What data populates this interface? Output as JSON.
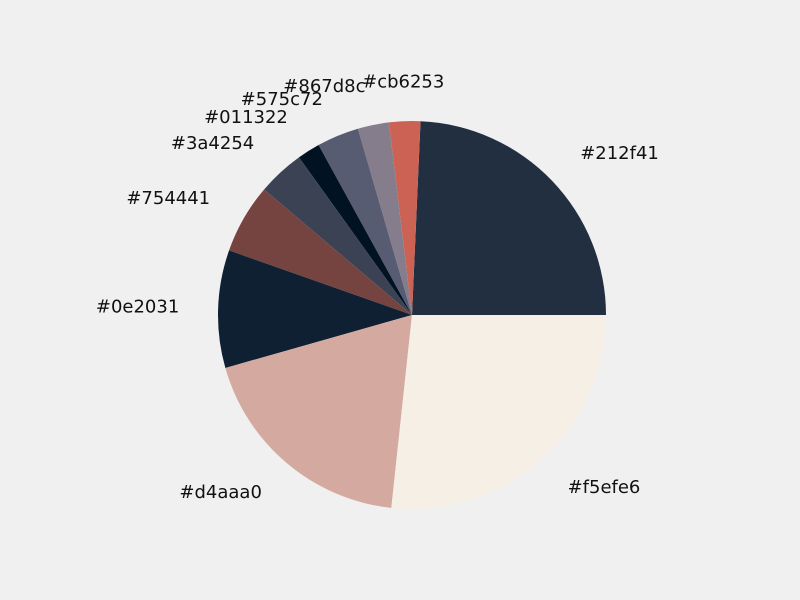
{
  "chart_data": {
    "type": "pie",
    "title": "",
    "categories": [
      "#212f41",
      "#cb6253",
      "#867d8c",
      "#575c72",
      "#011322",
      "#3a4254",
      "#754441",
      "#0e2031",
      "#d4aaa0",
      "#f5efe6"
    ],
    "values": [
      24.3,
      2.6,
      2.6,
      3.5,
      1.9,
      3.9,
      5.8,
      9.8,
      18.9,
      26.7
    ],
    "colors": [
      "#212f41",
      "#cb6253",
      "#867d8c",
      "#575c72",
      "#011322",
      "#3a4254",
      "#754441",
      "#0e2031",
      "#d4aaa0",
      "#f5efe6"
    ],
    "start_angle_deg": 0,
    "direction": "counterclockwise",
    "legend": "none",
    "background": "#f0f0f0"
  }
}
